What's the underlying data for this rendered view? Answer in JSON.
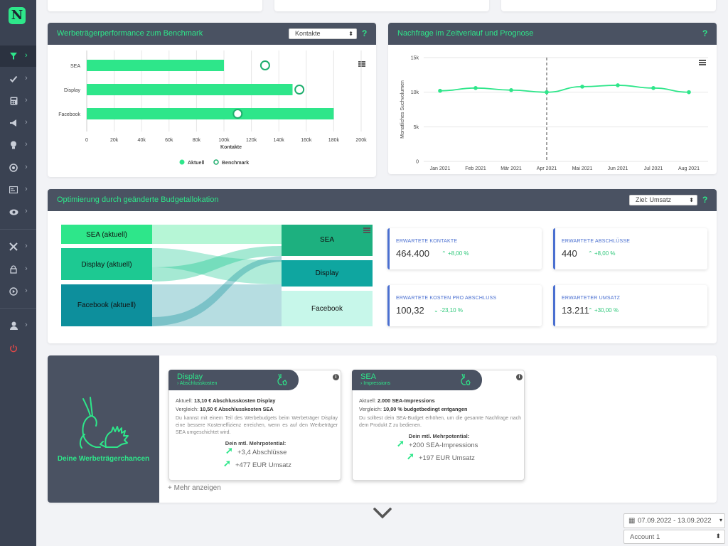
{
  "sidebar": {
    "logo": "N",
    "items": [
      {
        "icon": "filter-icon",
        "active": true
      },
      {
        "icon": "check-icon"
      },
      {
        "icon": "calculator-icon"
      },
      {
        "icon": "megaphone-icon"
      },
      {
        "icon": "lightbulb-icon"
      },
      {
        "icon": "target-icon"
      },
      {
        "icon": "card-icon"
      },
      {
        "icon": "eye-icon"
      },
      {
        "icon": "tools-icon"
      },
      {
        "icon": "lock-icon"
      },
      {
        "icon": "play-icon"
      },
      {
        "icon": "user-icon"
      },
      {
        "icon": "power-icon"
      }
    ]
  },
  "benchmark": {
    "title": "Werbeträgerperformance zum Benchmark",
    "select_value": "Kontakte",
    "help": "?",
    "chart_data": {
      "type": "bar",
      "categories": [
        "SEA",
        "Display",
        "Facebook"
      ],
      "series": [
        {
          "name": "Aktuell",
          "values": [
            100000,
            150000,
            180000
          ]
        },
        {
          "name": "Benchmark",
          "values": [
            130000,
            155000,
            110000
          ]
        }
      ],
      "xlabel": "Kontakte",
      "xlim": [
        0,
        200000
      ],
      "ticks": [
        "0",
        "20k",
        "40k",
        "60k",
        "80k",
        "100k",
        "120k",
        "140k",
        "160k",
        "180k",
        "200k"
      ],
      "legend": "bottom",
      "colors": {
        "bar": "#2ee68a",
        "marker": "#1fae6e"
      }
    }
  },
  "demand": {
    "title": "Nachfrage im Zeitverlauf und Prognose",
    "help": "?",
    "chart_data": {
      "type": "line",
      "categories": [
        "Jan 2021",
        "Feb 2021",
        "Mär 2021",
        "Apr 2021",
        "Mai 2021",
        "Jun 2021",
        "Jul 2021",
        "Aug 2021"
      ],
      "series": [
        {
          "name": "Nachfrage",
          "values": [
            10200,
            10600,
            10300,
            10000,
            10800,
            11000,
            10600,
            10000
          ]
        }
      ],
      "ylabel": "Monatliches Suchvolumen",
      "ylim": [
        0,
        15000
      ],
      "yticks": [
        "0",
        "5k",
        "10k",
        "15k"
      ],
      "marker_line_at": "Apr 2021",
      "legend": "bottom",
      "color": "#2ee68a"
    }
  },
  "optimization": {
    "title": "Optimierung durch geänderte Budgetallokation",
    "select_value": "Ziel: Umsatz",
    "help": "?",
    "sankey": {
      "sources": [
        "SEA (aktuell)",
        "Display (aktuell)",
        "Facebook (aktuell)"
      ],
      "targets": [
        "SEA",
        "Display",
        "Facebook"
      ],
      "source_colors": [
        "#2ee68a",
        "#1dc992",
        "#0d8f9c"
      ],
      "target_colors": [
        "#1db07f",
        "#0fa6a0",
        "#c7f7ea"
      ]
    },
    "kpis": [
      {
        "label": "ERWARTETE KONTAKTE",
        "value": "464.400",
        "delta": "+8,00 %"
      },
      {
        "label": "ERWARTETE ABSCHLÜSSE",
        "value": "440",
        "delta": "+8,00 %"
      },
      {
        "label": "ERWARTETE KOSTEN PRO ABSCHLUSS",
        "value": "100,32",
        "delta": "-23,10 %"
      },
      {
        "label": "ERWARTETER UMSATZ",
        "value": "13.211",
        "delta": "+30,00 %"
      }
    ]
  },
  "chances": {
    "panel_label": "Deine Werbeträgerchancen",
    "more": "+ Mehr anzeigen",
    "cards": [
      {
        "title": "Display",
        "subtitle": "Abschlusskosten",
        "current_prefix": "Aktuell:",
        "current": "13,10 € Abschlusskosten Display",
        "compare_prefix": "Vergleich:",
        "compare": "10,50 € Abschlusskosten SEA",
        "text": "Du kannst mit einem Teil des Werbebudgets beim Werbeträger Display eine bessere Kosteneffizienz erreichen, wenn es auf den Werbeträger SEA umgeschichtet wird.",
        "potential_label": "Dein mtl. Mehrpotential:",
        "line1": "+3,4 Abschlüsse",
        "line2": "+477 EUR Umsatz"
      },
      {
        "title": "SEA",
        "subtitle": "Impressions",
        "current_prefix": "Aktuell:",
        "current": "2.000 SEA-Impressions",
        "compare_prefix": "Vergleich:",
        "compare": "10,00 % budgetbedingt entgangen",
        "text": "Du solltest dein SEA-Budget erhöhen, um die gesamte Nachfrage nach dem Produkt Z zu bedienen.",
        "potential_label": "Dein mtl. Mehrpotential:",
        "line1": "+200 SEA-Impressions",
        "line2": "+197 EUR Umsatz"
      }
    ]
  },
  "footer": {
    "date_range": "07.09.2022 - 13.09.2022",
    "account": "Account 1"
  }
}
